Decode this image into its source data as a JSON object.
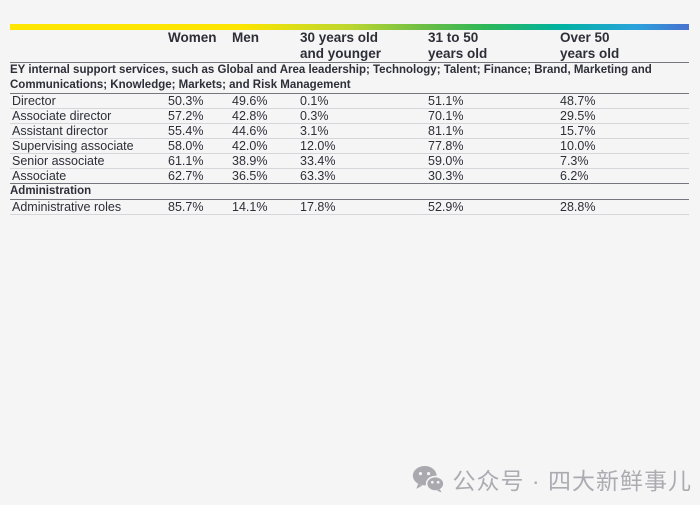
{
  "chart_data": {
    "type": "table",
    "columns": [
      {
        "key": "role",
        "label": ""
      },
      {
        "key": "women",
        "label": "Women"
      },
      {
        "key": "men",
        "label": "Men"
      },
      {
        "key": "age_30_and_younger",
        "label": "30 years old\nand younger"
      },
      {
        "key": "age_31_to_50",
        "label": "31 to 50\nyears old"
      },
      {
        "key": "age_over_50",
        "label": "Over 50\nyears old"
      }
    ],
    "sections": [
      {
        "header": "EY internal support services, such as Global and Area leadership; Technology; Talent; Finance; Brand, Marketing and Communications; Knowledge; Markets; and Risk Management",
        "rows": [
          {
            "label": "Director",
            "values": [
              "50.3%",
              "49.6%",
              "0.1%",
              "51.1%",
              "48.7%"
            ]
          },
          {
            "label": "Associate director",
            "values": [
              "57.2%",
              "42.8%",
              "0.3%",
              "70.1%",
              "29.5%"
            ]
          },
          {
            "label": "Assistant director",
            "values": [
              "55.4%",
              "44.6%",
              "3.1%",
              "81.1%",
              "15.7%"
            ]
          },
          {
            "label": "Supervising associate",
            "values": [
              "58.0%",
              "42.0%",
              "12.0%",
              "77.8%",
              "10.0%"
            ]
          },
          {
            "label": "Senior associate",
            "values": [
              "61.1%",
              "38.9%",
              "33.4%",
              "59.0%",
              "7.3%"
            ]
          },
          {
            "label": "Associate",
            "values": [
              "62.7%",
              "36.5%",
              "63.3%",
              "30.3%",
              "6.2%"
            ]
          }
        ]
      },
      {
        "header": "Administration",
        "rows": [
          {
            "label": "Administrative roles",
            "values": [
              "85.7%",
              "14.1%",
              "17.8%",
              "52.9%",
              "28.8%"
            ]
          }
        ]
      }
    ]
  },
  "style_colors": {
    "bar_gradient": [
      "#ffe600",
      "#2db757",
      "#00b2a0",
      "#4577d1"
    ],
    "text": "#2e2e38",
    "rule_dark": "#76767f",
    "rule_light": "#d5d5da",
    "background": "#f5f5f6",
    "watermark": "#ababb1"
  },
  "watermark": {
    "icon": "wechat-icon",
    "text": "公众号 · 四大新鲜事儿"
  }
}
